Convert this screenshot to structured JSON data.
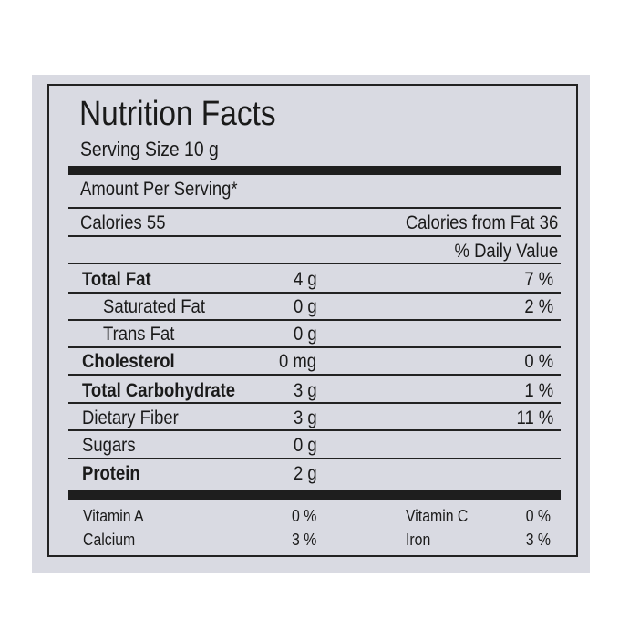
{
  "title": "Nutrition Facts",
  "serving_size": "Serving Size 10 g",
  "amount_per_serving": "Amount Per Serving*",
  "calories": "Calories  55",
  "calories_from_fat": "Calories from Fat  36",
  "daily_value_header": "% Daily Value",
  "nutrients": [
    {
      "name": "Total Fat",
      "amount": "4 g",
      "dv": "7 %"
    },
    {
      "name": "Saturated Fat",
      "amount": "0 g",
      "dv": "2 %"
    },
    {
      "name": "Trans Fat",
      "amount": "0 g",
      "dv": ""
    },
    {
      "name": "Cholesterol",
      "amount": "0 mg",
      "dv": "0 %"
    },
    {
      "name": "Total Carbohydrate",
      "amount": "3 g",
      "dv": "1 %"
    },
    {
      "name": "Dietary Fiber",
      "amount": "3 g",
      "dv": "11 %"
    },
    {
      "name": "Sugars",
      "amount": "0 g",
      "dv": ""
    },
    {
      "name": "Protein",
      "amount": "2 g",
      "dv": ""
    }
  ],
  "vitamins": [
    {
      "name": "Vitamin A",
      "value": "0 %"
    },
    {
      "name": "Vitamin C",
      "value": "0 %"
    },
    {
      "name": "Calcium",
      "value": "3 %"
    },
    {
      "name": "Iron",
      "value": "3 %"
    }
  ]
}
